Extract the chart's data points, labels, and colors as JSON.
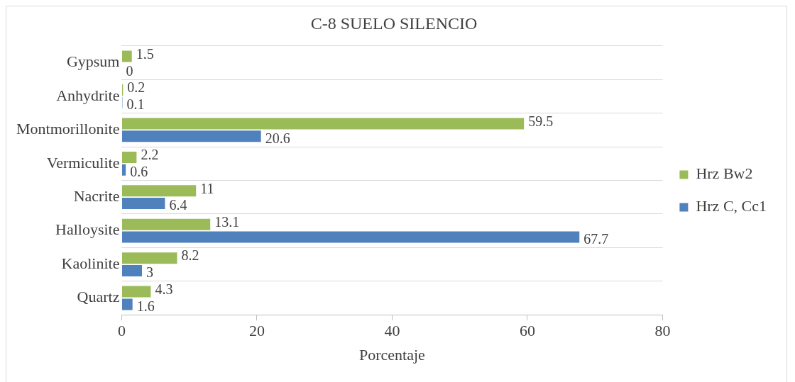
{
  "chart_data": {
    "type": "bar",
    "orientation": "horizontal",
    "title": "C-8 SUELO SILENCIO",
    "xlabel": "Porcentaje",
    "categories": [
      "Gypsum",
      "Anhydrite",
      "Montmorillonite",
      "Vermiculite",
      "Nacrite",
      "Halloysite",
      "Kaolinite",
      "Quartz"
    ],
    "series": [
      {
        "name": "Hrz Bw2",
        "color": "#9bbb59",
        "values": [
          1.5,
          0.2,
          59.5,
          2.2,
          11,
          13.1,
          8.2,
          4.3
        ]
      },
      {
        "name": "Hrz C, Cc1",
        "color": "#4f81bd",
        "values": [
          0,
          0.1,
          20.6,
          0.6,
          6.4,
          67.7,
          3,
          1.6
        ]
      }
    ],
    "xlim": [
      0,
      80
    ],
    "xticks": [
      0,
      20,
      40,
      60,
      80
    ],
    "grid": "y",
    "legend": "right",
    "data_labels": true
  }
}
